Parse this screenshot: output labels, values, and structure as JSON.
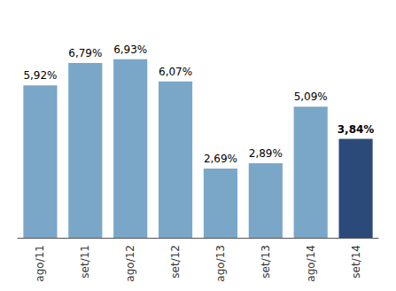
{
  "chart_data": {
    "type": "bar",
    "categories": [
      "ago/11",
      "set/11",
      "ago/12",
      "set/12",
      "ago/13",
      "set/13",
      "ago/14",
      "set/14"
    ],
    "values": [
      5.92,
      6.79,
      6.93,
      6.07,
      2.69,
      2.89,
      5.09,
      3.84
    ],
    "value_labels": [
      "5,92%",
      "6,79%",
      "6,93%",
      "6,07%",
      "2,69%",
      "2,89%",
      "5,09%",
      "3,84%"
    ],
    "colors": [
      "#7aa7c7",
      "#7aa7c7",
      "#7aa7c7",
      "#7aa7c7",
      "#7aa7c7",
      "#7aa7c7",
      "#7aa7c7",
      "#2b4a7a"
    ],
    "ylim": [
      0,
      8.2
    ],
    "grid": false,
    "data_labels": true,
    "tick_labels": "x"
  }
}
